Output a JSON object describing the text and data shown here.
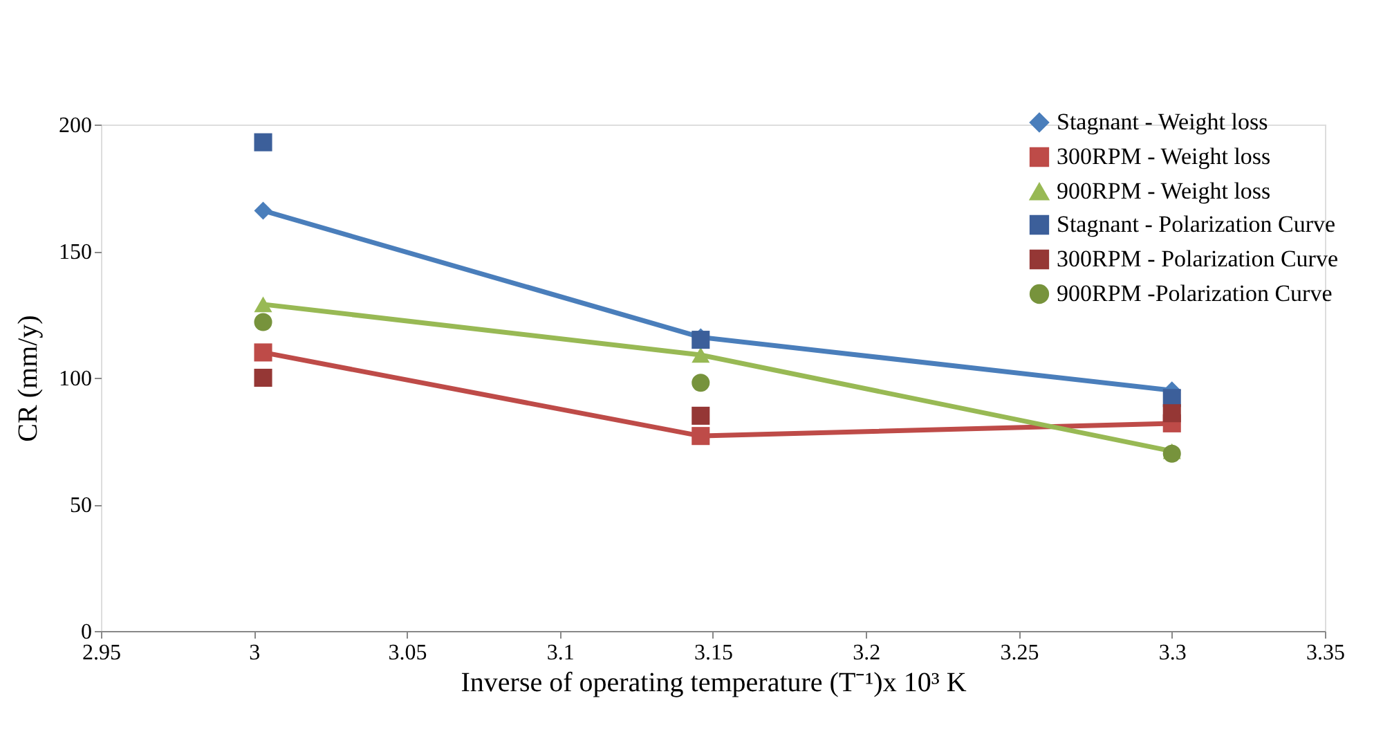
{
  "chart_data": {
    "type": "line",
    "xlabel": "Inverse  of operating temperature (T⁻¹)x 10³ K",
    "ylabel": "CR (mm/y)",
    "xlim": [
      2.95,
      3.35
    ],
    "xticks": [
      2.95,
      3,
      3.05,
      3.1,
      3.15,
      3.2,
      3.25,
      3.3,
      3.35
    ],
    "ylim": [
      0,
      200
    ],
    "yticks": [
      0,
      50,
      100,
      150,
      200
    ],
    "grid": false,
    "legend": "top right",
    "x": [
      3.003,
      3.146,
      3.3
    ],
    "series": [
      {
        "name": "Stagnant - Weight loss",
        "marker": "diamond",
        "color": "#4a7ebb",
        "values": [
          166,
          116,
          95
        ]
      },
      {
        "name": "300RPM - Weight loss",
        "marker": "square",
        "color": "#be4b48",
        "values": [
          110,
          77,
          82
        ]
      },
      {
        "name": "900RPM - Weight loss",
        "marker": "triangle",
        "color": "#98b954",
        "values": [
          129,
          109,
          71
        ]
      },
      {
        "name": "Stagnant - Polarization Curve",
        "type": "scatter",
        "marker": "square",
        "color": "#3c5f9a",
        "values": [
          193,
          115,
          92
        ]
      },
      {
        "name": "300RPM - Polarization Curve",
        "type": "scatter",
        "marker": "square",
        "color": "#953735",
        "values": [
          100,
          85,
          86
        ]
      },
      {
        "name": "900RPM -Polarization Curve",
        "type": "scatter",
        "marker": "circle",
        "color": "#77933c",
        "values": [
          122,
          98,
          70
        ]
      }
    ]
  }
}
